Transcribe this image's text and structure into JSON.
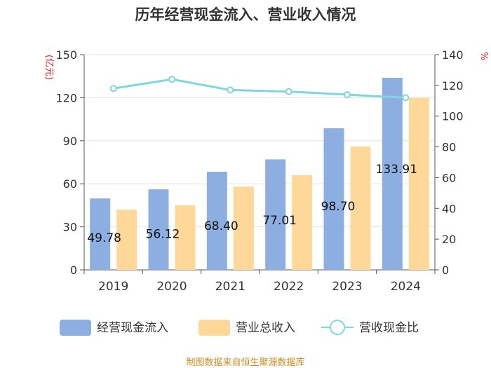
{
  "chart_data": {
    "type": "bar",
    "title": "历年经营现金流入、营业收入情况",
    "categories": [
      "2019",
      "2020",
      "2021",
      "2022",
      "2023",
      "2024"
    ],
    "series": [
      {
        "name": "经营现金流入",
        "kind": "bar",
        "axis": "left",
        "color": "#8daee0",
        "values": [
          49.78,
          56.12,
          68.4,
          77.01,
          98.7,
          133.91
        ],
        "labels": [
          "49.78",
          "56.12",
          "68.40",
          "77.01",
          "98.70",
          "133.91"
        ]
      },
      {
        "name": "营业总收入",
        "kind": "bar",
        "axis": "left",
        "color": "#fdd898",
        "values": [
          42,
          45,
          58,
          66,
          86,
          120
        ]
      },
      {
        "name": "营收现金比",
        "kind": "line",
        "axis": "right",
        "color": "#7fd6dc",
        "values": [
          118,
          124,
          117,
          116,
          114,
          112
        ]
      }
    ],
    "y_left": {
      "label": "(亿元)",
      "range": [
        0,
        150
      ],
      "ticks": [
        "0",
        "30",
        "60",
        "90",
        "120",
        "150"
      ]
    },
    "y_right": {
      "label": "%",
      "range": [
        0,
        140
      ],
      "ticks": [
        "0",
        "20",
        "40",
        "60",
        "80",
        "100",
        "120",
        "140"
      ]
    },
    "grid": true,
    "legend_position": "bottom"
  },
  "source": "制图数据来自恒生聚源数据库"
}
